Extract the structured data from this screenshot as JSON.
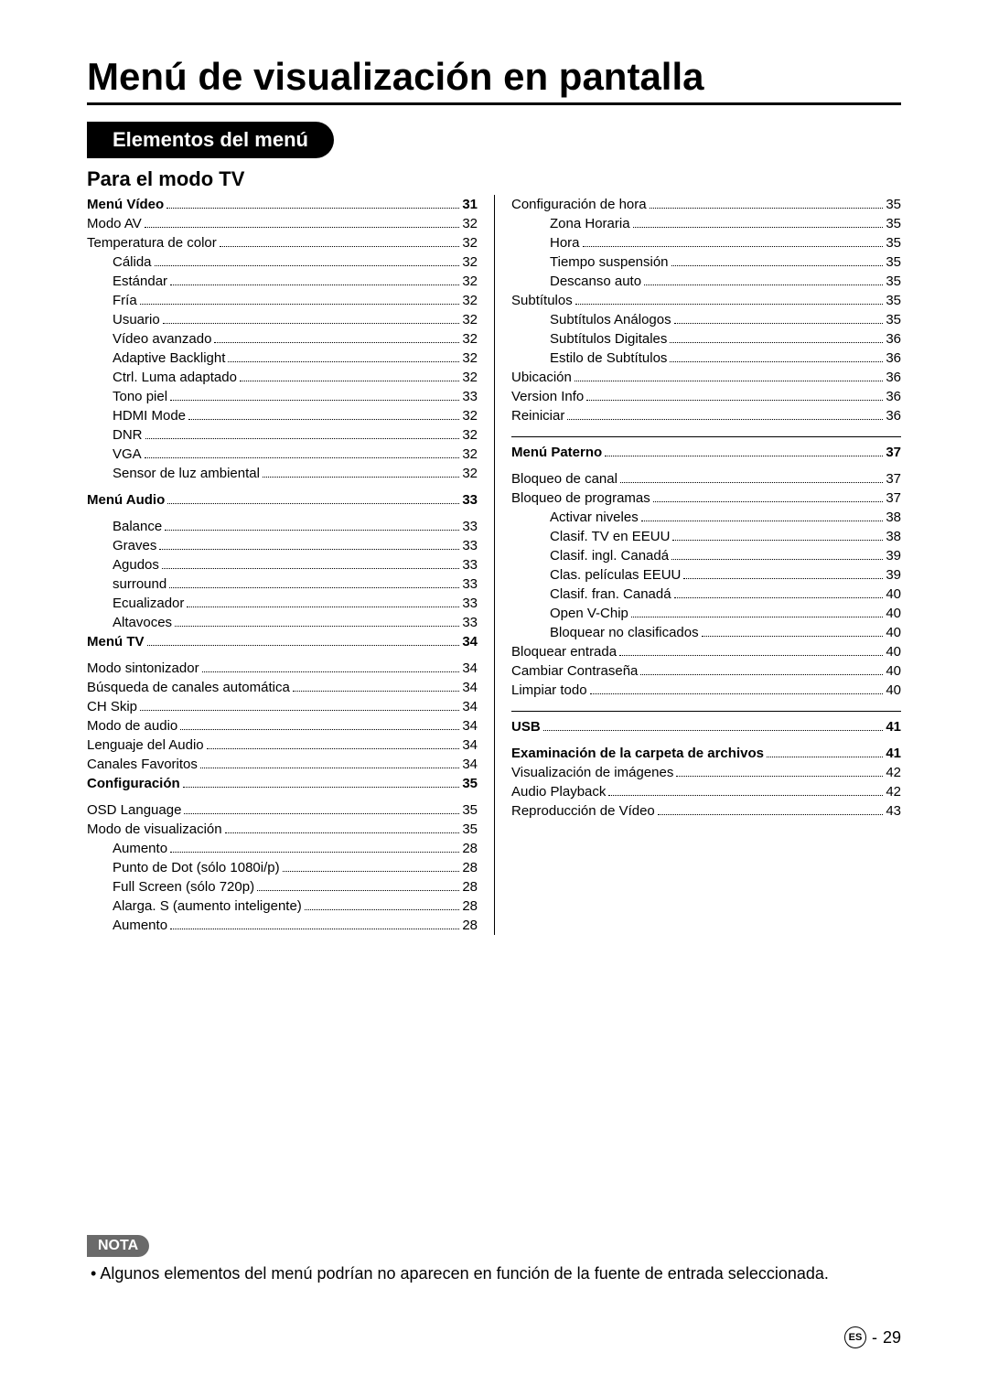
{
  "page": {
    "title": "Menú de visualización en pantalla",
    "sectionBar": "Elementos del menú",
    "subtitle": "Para el modo TV",
    "langBadge": "ES",
    "pageSep": "-",
    "pageNum": "29"
  },
  "nota": {
    "tag": "NOTA",
    "text": "Algunos elementos del menú podrían no aparecen en función de la fuente de entrada seleccionada."
  },
  "left": [
    {
      "label": "Menú Vídeo",
      "page": "31",
      "indent": 0,
      "bold": true
    },
    {
      "label": "Modo AV",
      "page": "32",
      "indent": 0
    },
    {
      "label": "Temperatura de color",
      "page": "32",
      "indent": 0
    },
    {
      "label": "Cálida",
      "page": "32",
      "indent": 1
    },
    {
      "label": "Estándar",
      "page": "32",
      "indent": 1
    },
    {
      "label": "Fría",
      "page": "32",
      "indent": 1
    },
    {
      "label": "Usuario",
      "page": "32",
      "indent": 1
    },
    {
      "label": "Vídeo avanzado",
      "page": "32",
      "indent": 1
    },
    {
      "label": "Adaptive Backlight",
      "page": "32",
      "indent": 1
    },
    {
      "label": "Ctrl. Luma adaptado",
      "page": "32",
      "indent": 1
    },
    {
      "label": "Tono piel",
      "page": "33",
      "indent": 1
    },
    {
      "label": "HDMI Mode",
      "page": "32",
      "indent": 1
    },
    {
      "label": "DNR",
      "page": "32",
      "indent": 1
    },
    {
      "label": "VGA",
      "page": "32",
      "indent": 1
    },
    {
      "label": "Sensor de luz ambiental",
      "page": "32",
      "indent": 1
    },
    {
      "label": "Menú Audio",
      "page": "33",
      "indent": 0,
      "bold": true,
      "gapBefore": true
    },
    {
      "label": "Balance",
      "page": "33",
      "indent": 1,
      "gapBefore": true
    },
    {
      "label": "Graves",
      "page": "33",
      "indent": 1
    },
    {
      "label": "Agudos",
      "page": "33",
      "indent": 1
    },
    {
      "label": "surround",
      "page": "33",
      "indent": 1
    },
    {
      "label": "Ecualizador",
      "page": "33",
      "indent": 1
    },
    {
      "label": "Altavoces",
      "page": "33",
      "indent": 1
    },
    {
      "label": "Menú TV",
      "page": "34",
      "indent": 0,
      "bold": true
    },
    {
      "label": "Modo sintonizador",
      "page": "34",
      "indent": 0,
      "gapBefore": true
    },
    {
      "label": "Búsqueda de canales automática",
      "page": "34",
      "indent": 0
    },
    {
      "label": "CH Skip",
      "page": "34",
      "indent": 0
    },
    {
      "label": "Modo de audio",
      "page": "34",
      "indent": 0
    },
    {
      "label": "Lenguaje del Audio",
      "page": "34",
      "indent": 0
    },
    {
      "label": "Canales Favoritos",
      "page": "34",
      "indent": 0
    },
    {
      "label": "Configuración",
      "page": "35",
      "indent": 0,
      "bold": true
    },
    {
      "label": "OSD Language",
      "page": "35",
      "indent": 0,
      "gapBefore": true
    },
    {
      "label": "Modo de visualización",
      "page": "35",
      "indent": 0
    },
    {
      "label": "Aumento",
      "page": "28",
      "indent": 1
    },
    {
      "label": "Punto de Dot (sólo 1080i/p)",
      "page": "28",
      "indent": 1
    },
    {
      "label": "Full Screen (sólo 720p)",
      "page": "28",
      "indent": 1
    },
    {
      "label": "Alarga. S (aumento inteligente)",
      "page": "28",
      "indent": 1
    },
    {
      "label": "Aumento",
      "page": "28",
      "indent": 1
    }
  ],
  "right": [
    {
      "label": "Configuración de hora",
      "page": "35",
      "indent": 0
    },
    {
      "label": "Zona Horaria",
      "page": "35",
      "indent": 2
    },
    {
      "label": "Hora",
      "page": "35",
      "indent": 2
    },
    {
      "label": "Tiempo suspensión",
      "page": "35",
      "indent": 2
    },
    {
      "label": "Descanso auto",
      "page": "35",
      "indent": 2
    },
    {
      "label": "Subtítulos",
      "page": "35",
      "indent": 0
    },
    {
      "label": "Subtítulos Análogos",
      "page": "35",
      "indent": 2
    },
    {
      "label": "Subtítulos Digitales",
      "page": "36",
      "indent": 2
    },
    {
      "label": "Estilo de Subtítulos",
      "page": "36",
      "indent": 2
    },
    {
      "label": "Ubicación",
      "page": "36",
      "indent": 0
    },
    {
      "label": "Version Info",
      "page": "36",
      "indent": 0
    },
    {
      "label": "Reiniciar",
      "page": "36",
      "indent": 0
    },
    {
      "label": "Menú Paterno",
      "page": "37",
      "indent": 0,
      "bold": true,
      "gapBefore": true,
      "rule": true
    },
    {
      "label": "Bloqueo de canal",
      "page": "37",
      "indent": 0,
      "gapBefore": true
    },
    {
      "label": "Bloqueo de programas",
      "page": "37",
      "indent": 0
    },
    {
      "label": "Activar niveles",
      "page": "38",
      "indent": 2
    },
    {
      "label": "Clasif. TV en EEUU",
      "page": "38",
      "indent": 2
    },
    {
      "label": "Clasif. ingl. Canadá",
      "page": "39",
      "indent": 2
    },
    {
      "label": "Clas. películas EEUU",
      "page": "39",
      "indent": 2
    },
    {
      "label": "Clasif. fran. Canadá",
      "page": "40",
      "indent": 2
    },
    {
      "label": "Open V-Chip",
      "page": "40",
      "indent": 2
    },
    {
      "label": "Bloquear no clasificados",
      "page": "40",
      "indent": 2
    },
    {
      "label": "Bloquear entrada",
      "page": "40",
      "indent": 0
    },
    {
      "label": "Cambiar Contraseña",
      "page": "40",
      "indent": 0
    },
    {
      "label": "Limpiar todo",
      "page": "40",
      "indent": 0
    },
    {
      "label": "USB",
      "page": "41",
      "indent": 0,
      "bold": true,
      "gapBefore": true,
      "rule": true
    },
    {
      "label": "Examinación de la carpeta de archivos",
      "page": "41",
      "indent": 0,
      "bold": true,
      "gapBefore": true
    },
    {
      "label": "Visualización de imágenes",
      "page": "42",
      "indent": 0
    },
    {
      "label": "Audio Playback",
      "page": "42",
      "indent": 0
    },
    {
      "label": "Reproducción de Vídeo",
      "page": "43",
      "indent": 0
    }
  ]
}
